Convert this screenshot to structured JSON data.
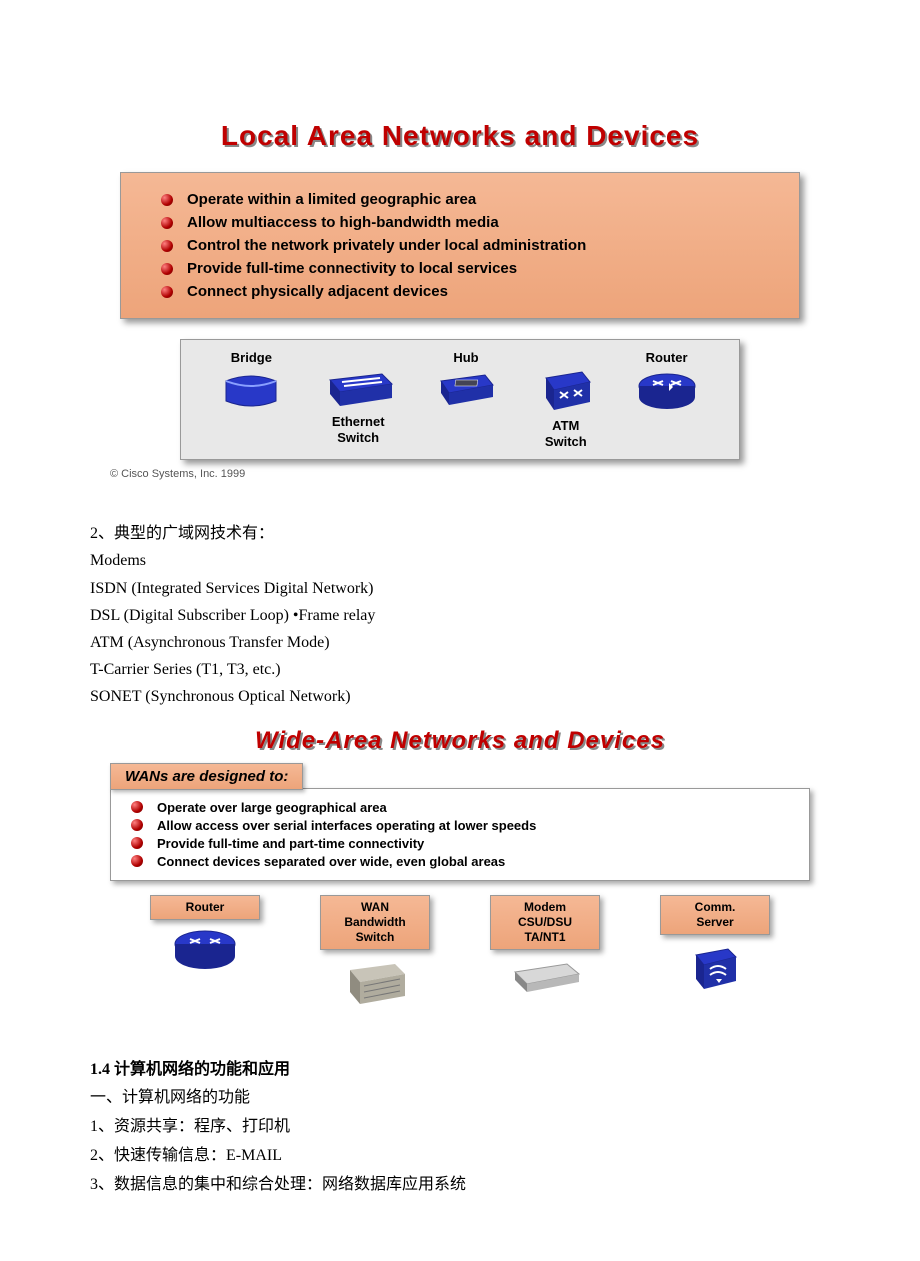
{
  "colors": {
    "title_red": "#c00000",
    "panel_bg_top": "#f5b895",
    "panel_bg_bot": "#eda47a",
    "device_blue": "#2838c8",
    "device_blue_dark": "#1a2590",
    "gray_box": "#a0a0a0",
    "text_black": "#000000"
  },
  "slide1": {
    "title": "Local Area Networks and Devices",
    "bullets": [
      "Operate within a limited geographic area",
      "Allow multiaccess to high-bandwidth media",
      "Control the network privately under local administration",
      "Provide full-time connectivity to local services",
      "Connect physically adjacent devices"
    ],
    "devices": [
      {
        "label": "Bridge",
        "label_pos": "top"
      },
      {
        "label": "Ethernet\nSwitch",
        "label_pos": "bottom"
      },
      {
        "label": "Hub",
        "label_pos": "top"
      },
      {
        "label": "ATM\nSwitch",
        "label_pos": "bottom"
      },
      {
        "label": "Router",
        "label_pos": "top"
      }
    ],
    "copyright": "© Cisco Systems, Inc. 1999"
  },
  "midtext": {
    "lines": [
      "2、典型的广域网技术有：",
      "Modems",
      "ISDN (Integrated Services Digital Network)",
      "DSL (Digital Subscriber Loop)      •Frame relay",
      "ATM (Asynchronous Transfer Mode)",
      "T-Carrier Series (T1, T3, etc.)",
      "SONET (Synchronous Optical Network)"
    ]
  },
  "slide2": {
    "title": "Wide-Area Networks and Devices",
    "subtitle": "WANs are designed to:",
    "bullets": [
      "Operate over large geographical area",
      "Allow access over serial interfaces operating at lower speeds",
      "Provide full-time and part-time connectivity",
      "Connect devices separated over wide, even global areas"
    ],
    "devices": [
      {
        "label": "Router"
      },
      {
        "label": "WAN\nBandwidth\nSwitch"
      },
      {
        "label": "Modem\nCSU/DSU\nTA/NT1"
      },
      {
        "label": "Comm.\nServer"
      }
    ]
  },
  "section": {
    "heading": "1.4 计算机网络的功能和应用",
    "lines": [
      "一、计算机网络的功能",
      "1、资源共享：程序、打印机",
      "2、快速传输信息：E-MAIL",
      "3、数据信息的集中和综合处理：网络数据库应用系统"
    ]
  }
}
